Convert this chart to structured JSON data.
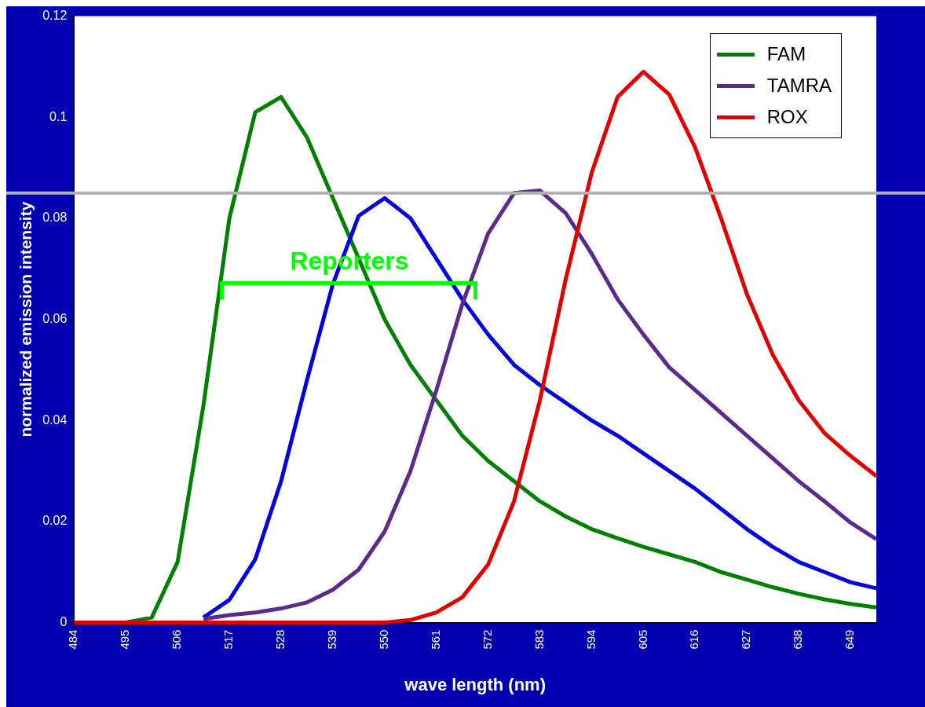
{
  "chart_data": {
    "type": "line",
    "xlabel": "wave length (nm)",
    "ylabel": "normalized emission intensity",
    "x": [
      484,
      489.5,
      495,
      500.5,
      506,
      511.5,
      517,
      522.5,
      528,
      533.5,
      539,
      544.5,
      550,
      555.5,
      561,
      566.5,
      572,
      577.5,
      583,
      588.5,
      594,
      599.5,
      605,
      610.5,
      616,
      621.5,
      627,
      632.5,
      638,
      643.5,
      649,
      654.5
    ],
    "series": [
      {
        "name": "FAM",
        "color": "#008000",
        "values": [
          null,
          null,
          0,
          0.001,
          0.012,
          0.043,
          0.08,
          0.101,
          0.104,
          0.096,
          0.084,
          0.072,
          0.06,
          0.051,
          0.044,
          0.037,
          0.032,
          0.028,
          0.024,
          0.021,
          0.0185,
          0.0167,
          0.015,
          0.0135,
          0.012,
          0.01,
          0.0085,
          0.007,
          0.0057,
          0.0046,
          0.0037,
          0.003
        ]
      },
      {
        "color": "#0000e0",
        "values": [
          null,
          null,
          null,
          null,
          null,
          0.001,
          0.0045,
          0.0125,
          0.028,
          0.048,
          0.067,
          0.0805,
          0.084,
          0.08,
          0.072,
          0.064,
          0.057,
          0.051,
          0.047,
          0.0435,
          0.04,
          0.037,
          0.0335,
          0.03,
          0.0265,
          0.0225,
          0.0185,
          0.015,
          0.012,
          0.01,
          0.008,
          0.0068
        ]
      },
      {
        "name": "TAMRA",
        "color": "#5b2a8a",
        "values": [
          null,
          null,
          null,
          null,
          null,
          0.0007,
          0.0015,
          0.002,
          0.0028,
          0.004,
          0.0065,
          0.0105,
          0.018,
          0.03,
          0.046,
          0.063,
          0.077,
          0.085,
          0.0855,
          0.081,
          0.073,
          0.064,
          0.057,
          0.0505,
          0.046,
          0.0415,
          0.037,
          0.0325,
          0.028,
          0.024,
          0.0198,
          0.0165
        ]
      },
      {
        "name": "ROX",
        "color": "#e00000",
        "values": [
          0,
          0,
          0,
          0,
          0,
          0,
          0,
          0,
          0,
          0,
          0,
          0,
          0,
          0.0005,
          0.002,
          0.005,
          0.0115,
          0.024,
          0.044,
          0.068,
          0.089,
          0.104,
          0.109,
          0.1045,
          0.094,
          0.08,
          0.065,
          0.053,
          0.044,
          0.0375,
          0.033,
          0.029
        ]
      }
    ],
    "xlim": [
      484,
      654.5
    ],
    "xticks": [
      484,
      495,
      506,
      517,
      528,
      539,
      550,
      561,
      572,
      583,
      594,
      605,
      616,
      627,
      638,
      649
    ],
    "ylim": [
      0,
      0.12
    ],
    "yticks": [
      0,
      0.02,
      0.04,
      0.06,
      0.08,
      0.1,
      0.12
    ],
    "ref_lines": [
      {
        "axis": "y",
        "value": 0.085,
        "color": "#b0b0b0"
      }
    ],
    "annotations": [
      "Reporters"
    ],
    "legend": "top right",
    "grid": false,
    "marker": "none",
    "line_style": "solid"
  }
}
